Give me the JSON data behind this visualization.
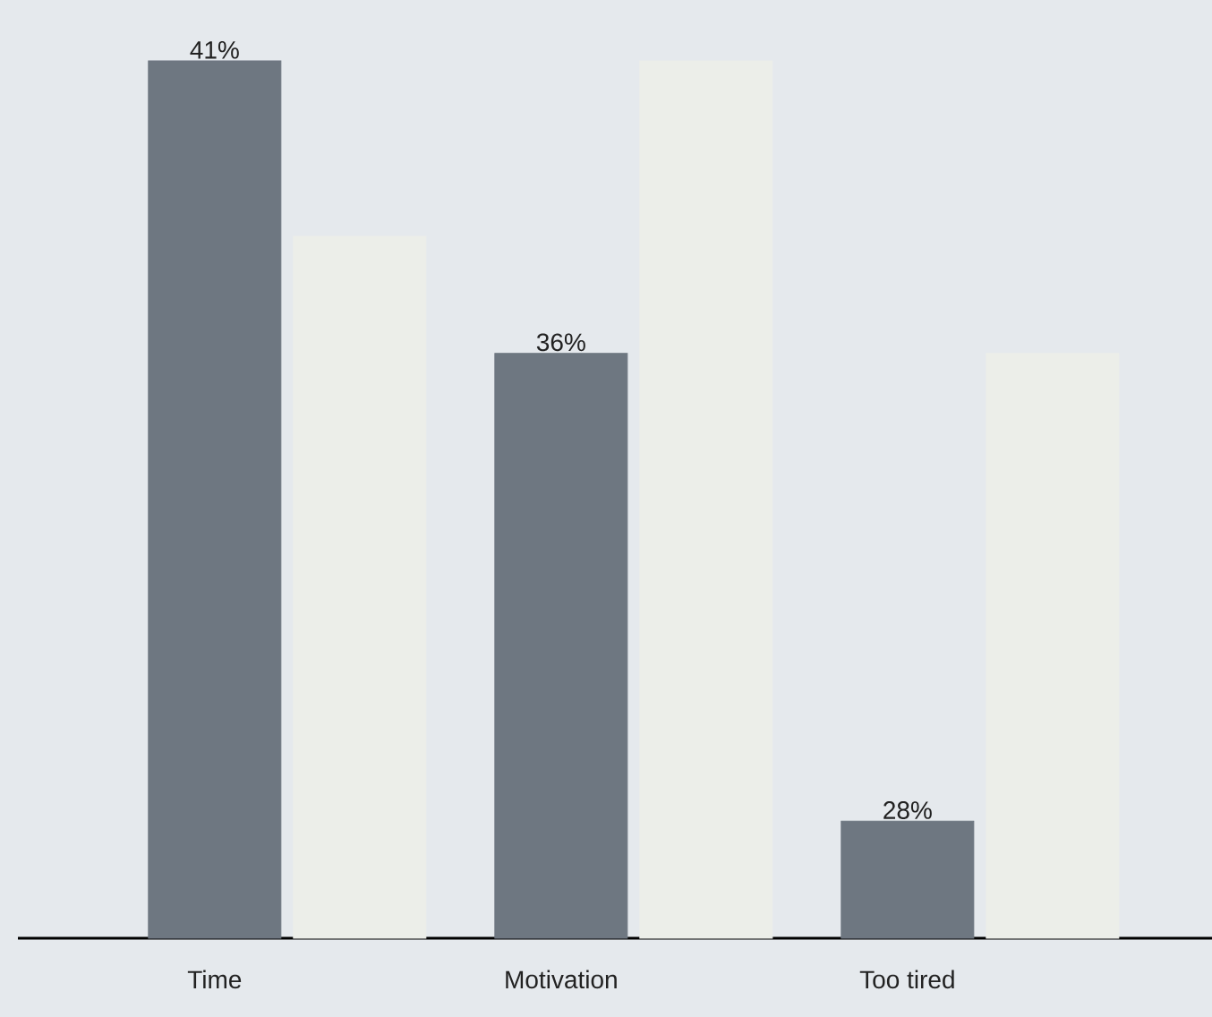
{
  "chart_data": {
    "type": "bar",
    "categories": [
      "Time",
      "Motivation",
      "Too tired"
    ],
    "ylim": [
      26,
      41
    ],
    "tick_labels": "x",
    "series": [
      {
        "color": "#6e7781",
        "values": [
          41,
          36,
          28
        ],
        "value_labels": [
          "41%",
          "36%",
          "28%"
        ]
      },
      {
        "color": "#eceee9",
        "values": [
          38,
          41,
          36
        ]
      }
    ]
  }
}
